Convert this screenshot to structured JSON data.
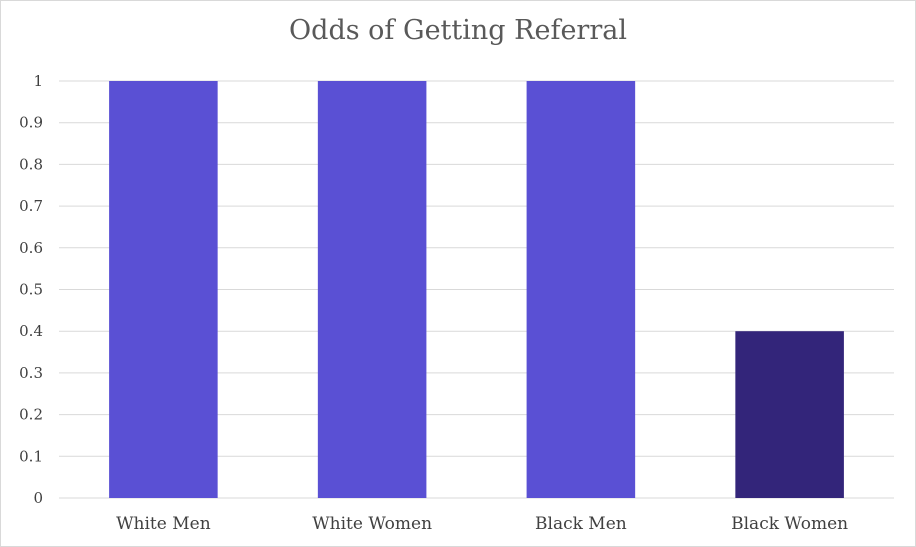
{
  "chart_data": {
    "type": "bar",
    "title": "Odds of Getting Referral",
    "xlabel": "",
    "ylabel": "",
    "categories": [
      "White Men",
      "White Women",
      "Black Men",
      "Black Women"
    ],
    "values": [
      1,
      1,
      1,
      0.4
    ],
    "bar_colors": [
      "#5a50d4",
      "#5a50d4",
      "#5a50d4",
      "#33257a"
    ],
    "ylim": [
      0,
      1
    ],
    "yticks": [
      "0",
      "0.1",
      "0.2",
      "0.3",
      "0.4",
      "0.5",
      "0.6",
      "0.7",
      "0.8",
      "0.9",
      "1"
    ],
    "grid": true,
    "legend": "none"
  }
}
